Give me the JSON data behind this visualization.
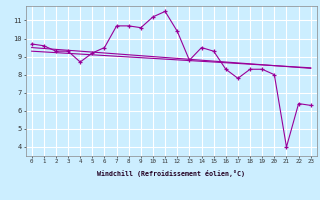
{
  "xlabel": "Windchill (Refroidissement éolien,°C)",
  "bg_color": "#cceeff",
  "line_color": "#990099",
  "grid_color": "#ffffff",
  "hours": [
    0,
    1,
    2,
    3,
    4,
    5,
    6,
    7,
    8,
    9,
    10,
    11,
    12,
    13,
    14,
    15,
    16,
    17,
    18,
    19,
    20,
    21,
    22,
    23
  ],
  "series1": [
    9.7,
    9.6,
    9.3,
    9.3,
    8.7,
    9.2,
    9.5,
    10.7,
    10.7,
    10.6,
    11.2,
    11.5,
    10.4,
    8.8,
    9.5,
    9.3,
    8.3,
    7.8,
    8.3,
    8.3,
    8.0,
    4.0,
    6.4,
    6.3
  ],
  "trend1": [
    9.5,
    9.45,
    9.4,
    9.35,
    9.3,
    9.25,
    9.2,
    9.15,
    9.1,
    9.05,
    9.0,
    8.95,
    8.9,
    8.85,
    8.8,
    8.75,
    8.7,
    8.65,
    8.6,
    8.55,
    8.5,
    8.45,
    8.4,
    8.35
  ],
  "trend2": [
    9.3,
    9.26,
    9.22,
    9.18,
    9.14,
    9.1,
    9.06,
    9.02,
    8.98,
    8.94,
    8.9,
    8.86,
    8.82,
    8.78,
    8.74,
    8.7,
    8.66,
    8.62,
    8.58,
    8.54,
    8.5,
    8.46,
    8.42,
    8.38
  ],
  "ylim": [
    3.5,
    11.8
  ],
  "yticks": [
    4,
    5,
    6,
    7,
    8,
    9,
    10,
    11
  ],
  "xlim": [
    -0.5,
    23.5
  ]
}
